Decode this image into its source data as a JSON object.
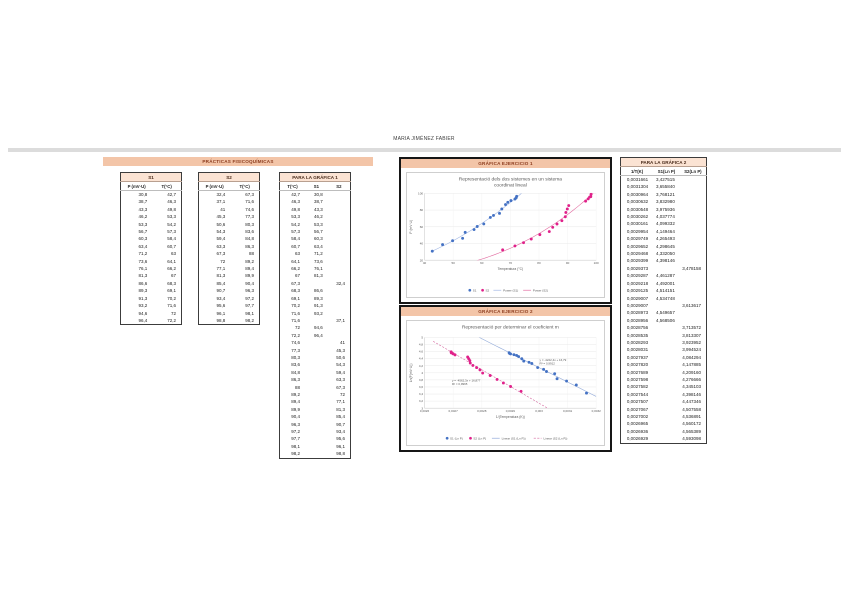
{
  "page": {
    "author_line": "MARIA JIMÉNEZ FABIER"
  },
  "section1": {
    "header": "PRÁCTICAS FISICOQUÍMICAS"
  },
  "charts": {
    "panel1_header": "GRÁFICA EJERCICIO 1",
    "panel2_header": "GRÁFICA EJERCICIO 2"
  },
  "colors": {
    "accent_bar": "#f3c5a8",
    "series1": "#4472c4",
    "series2": "#e0218a"
  },
  "tables": {
    "t1": {
      "title": "S1",
      "cols": [
        "P (mV·U)",
        "T(°C)"
      ],
      "rows": [
        [
          "30,8",
          "42,7"
        ],
        [
          "38,7",
          "46,3"
        ],
        [
          "43,3",
          "49,8"
        ],
        [
          "46,2",
          "53,3"
        ],
        [
          "53,3",
          "54,2"
        ],
        [
          "56,7",
          "57,3"
        ],
        [
          "60,3",
          "58,4"
        ],
        [
          "63,4",
          "60,7"
        ],
        [
          "71,2",
          "63"
        ],
        [
          "73,6",
          "64,1"
        ],
        [
          "76,1",
          "66,2"
        ],
        [
          "81,3",
          "67"
        ],
        [
          "86,6",
          "68,3"
        ],
        [
          "89,3",
          "69,1"
        ],
        [
          "91,3",
          "70,2"
        ],
        [
          "93,2",
          "71,6"
        ],
        [
          "94,6",
          "72"
        ],
        [
          "96,4",
          "72,2"
        ]
      ]
    },
    "t2": {
      "title": "S2",
      "cols": [
        "P (mV·U)",
        "T(°C)"
      ],
      "rows": [
        [
          "32,4",
          "67,3"
        ],
        [
          "37,1",
          "71,6"
        ],
        [
          "41",
          "74,6"
        ],
        [
          "45,3",
          "77,3"
        ],
        [
          "50,6",
          "80,3"
        ],
        [
          "54,3",
          "83,6"
        ],
        [
          "59,4",
          "84,8"
        ],
        [
          "63,3",
          "86,3"
        ],
        [
          "67,3",
          "88"
        ],
        [
          "72",
          "89,2"
        ],
        [
          "77,1",
          "89,4"
        ],
        [
          "81,3",
          "89,9"
        ],
        [
          "85,4",
          "90,4"
        ],
        [
          "90,7",
          "96,3"
        ],
        [
          "93,4",
          "97,2"
        ],
        [
          "95,6",
          "97,7"
        ],
        [
          "96,1",
          "98,1"
        ],
        [
          "98,8",
          "98,2"
        ]
      ]
    },
    "t3": {
      "title": "PARA LA GRÁFICA 1",
      "cols": [
        "T(°C)",
        "S1",
        "S2"
      ],
      "rows": [
        [
          "42,7",
          "30,8",
          ""
        ],
        [
          "46,3",
          "38,7",
          ""
        ],
        [
          "49,8",
          "43,3",
          ""
        ],
        [
          "53,3",
          "46,2",
          ""
        ],
        [
          "54,2",
          "53,3",
          ""
        ],
        [
          "57,3",
          "56,7",
          ""
        ],
        [
          "58,4",
          "60,3",
          ""
        ],
        [
          "60,7",
          "63,4",
          ""
        ],
        [
          "63",
          "71,2",
          ""
        ],
        [
          "64,1",
          "73,6",
          ""
        ],
        [
          "66,2",
          "76,1",
          ""
        ],
        [
          "67",
          "81,3",
          ""
        ],
        [
          "67,3",
          "",
          "32,4"
        ],
        [
          "68,3",
          "86,6",
          ""
        ],
        [
          "69,1",
          "89,3",
          ""
        ],
        [
          "70,2",
          "91,3",
          ""
        ],
        [
          "71,6",
          "93,2",
          ""
        ],
        [
          "71,6",
          "",
          "37,1"
        ],
        [
          "72",
          "94,6",
          ""
        ],
        [
          "72,2",
          "96,4",
          ""
        ],
        [
          "74,6",
          "",
          "41"
        ],
        [
          "77,3",
          "",
          "45,3"
        ],
        [
          "80,3",
          "",
          "50,6"
        ],
        [
          "83,6",
          "",
          "54,3"
        ],
        [
          "84,8",
          "",
          "59,4"
        ],
        [
          "86,3",
          "",
          "63,3"
        ],
        [
          "88",
          "",
          "67,3"
        ],
        [
          "89,2",
          "",
          "72"
        ],
        [
          "89,4",
          "",
          "77,1"
        ],
        [
          "89,9",
          "",
          "81,3"
        ],
        [
          "90,4",
          "",
          "85,4"
        ],
        [
          "96,3",
          "",
          "90,7"
        ],
        [
          "97,2",
          "",
          "93,4"
        ],
        [
          "97,7",
          "",
          "95,6"
        ],
        [
          "98,1",
          "",
          "96,1"
        ],
        [
          "98,2",
          "",
          "98,8"
        ]
      ]
    },
    "t4": {
      "title": "PARA LA GRÁFICA 2",
      "cols": [
        "1/T(K)",
        "S1(Ln P)",
        "S2(Ln P)"
      ],
      "rows": [
        [
          "0,0031661",
          "3,427515",
          ""
        ],
        [
          "0,0031304",
          "3,655840",
          ""
        ],
        [
          "0,0030964",
          "3,768121",
          ""
        ],
        [
          "0,0030632",
          "3,832980",
          ""
        ],
        [
          "0,0030548",
          "3,975936",
          ""
        ],
        [
          "0,0030262",
          "4,037774",
          ""
        ],
        [
          "0,0030161",
          "4,099332",
          ""
        ],
        [
          "0,0029954",
          "4,149464",
          ""
        ],
        [
          "0,0029749",
          "4,265493",
          ""
        ],
        [
          "0,0029652",
          "4,298645",
          ""
        ],
        [
          "0,0029468",
          "4,332050",
          ""
        ],
        [
          "0,0029399",
          "4,398146",
          ""
        ],
        [
          "0,0029373",
          "",
          "3,478158"
        ],
        [
          "0,0029287",
          "4,461287",
          ""
        ],
        [
          "0,0029218",
          "4,492001",
          ""
        ],
        [
          "0,0029125",
          "4,514151",
          ""
        ],
        [
          "0,0029007",
          "4,534748",
          ""
        ],
        [
          "0,0029007",
          "",
          "3,613617"
        ],
        [
          "0,0028973",
          "4,549657",
          ""
        ],
        [
          "0,0028956",
          "4,568506",
          ""
        ],
        [
          "0,0028756",
          "",
          "3,713572"
        ],
        [
          "0,0028535",
          "",
          "3,813307"
        ],
        [
          "0,0028293",
          "",
          "3,923952"
        ],
        [
          "0,0028031",
          "",
          "3,994524"
        ],
        [
          "0,0027937",
          "",
          "4,084294"
        ],
        [
          "0,0027820",
          "",
          "4,147885"
        ],
        [
          "0,0027689",
          "",
          "4,209160"
        ],
        [
          "0,0027598",
          "",
          "4,276666"
        ],
        [
          "0,0027582",
          "",
          "4,345103"
        ],
        [
          "0,0027544",
          "",
          "4,398146"
        ],
        [
          "0,0027507",
          "",
          "4,447346"
        ],
        [
          "0,0027067",
          "",
          "4,507558"
        ],
        [
          "0,0027002",
          "",
          "4,536891"
        ],
        [
          "0,0026965",
          "",
          "4,560172"
        ],
        [
          "0,0026936",
          "",
          "4,565389"
        ],
        [
          "0,0026929",
          "",
          "4,593098"
        ]
      ]
    }
  },
  "chart_data": [
    {
      "type": "scatter",
      "title_lines": [
        "Representació dels dos sistemes en un sistema",
        "coordinat lineal"
      ],
      "xlabel": "Temperatura (°C)",
      "ylabel": "P (mV·U)",
      "xlim": [
        40,
        100
      ],
      "ylim": [
        20,
        100
      ],
      "grid": true,
      "legend_position": "bottom",
      "xticks": [
        40,
        50,
        60,
        70,
        80,
        90,
        100
      ],
      "xtick_labels": [
        "40",
        "50",
        "60",
        "70",
        "80",
        "90",
        "100"
      ],
      "yticks": [
        20,
        40,
        60,
        80,
        100
      ],
      "ytick_labels": [
        "20",
        "40",
        "60",
        "80",
        "100"
      ],
      "series": [
        {
          "name": "S1",
          "color": "#4472c4",
          "points": [
            [
              42.7,
              30.8
            ],
            [
              46.3,
              38.7
            ],
            [
              49.8,
              43.3
            ],
            [
              53.3,
              46.2
            ],
            [
              54.2,
              53.3
            ],
            [
              57.3,
              56.7
            ],
            [
              58.4,
              60.3
            ],
            [
              60.7,
              63.4
            ],
            [
              63,
              71.2
            ],
            [
              64.1,
              73.6
            ],
            [
              66.2,
              76.1
            ],
            [
              67,
              81.3
            ],
            [
              68.3,
              86.6
            ],
            [
              69.1,
              89.3
            ],
            [
              70.2,
              91.3
            ],
            [
              71.6,
              93.2
            ],
            [
              72,
              94.6
            ],
            [
              72.2,
              96.4
            ]
          ]
        },
        {
          "name": "S2",
          "color": "#e0218a",
          "points": [
            [
              67.3,
              32.4
            ],
            [
              71.6,
              37.1
            ],
            [
              74.6,
              41
            ],
            [
              77.3,
              45.3
            ],
            [
              80.3,
              50.6
            ],
            [
              83.6,
              54.3
            ],
            [
              84.8,
              59.4
            ],
            [
              86.3,
              63.3
            ],
            [
              88,
              67.3
            ],
            [
              89.2,
              72
            ],
            [
              89.4,
              77.1
            ],
            [
              89.9,
              81.3
            ],
            [
              90.4,
              85.4
            ],
            [
              96.3,
              90.7
            ],
            [
              97.2,
              93.4
            ],
            [
              97.7,
              95.6
            ],
            [
              98.1,
              96.1
            ],
            [
              98.2,
              98.8
            ]
          ]
        }
      ],
      "trendlines": [
        {
          "name": "Power (S1)",
          "color": "#9fb5e3",
          "fit": "power",
          "series": 0,
          "range": [
            43,
            79
          ],
          "dash": null
        },
        {
          "name": "Power (S2)",
          "color": "#e2699f",
          "fit": "power",
          "series": 1,
          "range": [
            52,
            99
          ],
          "dash": null
        }
      ],
      "annotations": []
    },
    {
      "type": "scatter",
      "title_lines": [
        "Representació per determinar el coeficient m"
      ],
      "xlabel": "1/(Temperatura (K))",
      "ylabel": "Ln(P(mV·U))",
      "xlim": [
        0.0026,
        0.0032
      ],
      "ylim": [
        3,
        5
      ],
      "grid": true,
      "legend_position": "bottom",
      "xticks": [
        0.0026,
        0.0027,
        0.0028,
        0.0029,
        0.003,
        0.0031,
        0.0032
      ],
      "xtick_labels": [
        "0,0026",
        "0,0027",
        "0,0028",
        "0,0029",
        "0,003",
        "0,0031",
        "0,0032"
      ],
      "yticks": [
        3,
        3.2,
        3.4,
        3.6,
        3.8,
        4,
        4.2,
        4.4,
        4.6,
        4.8,
        5
      ],
      "ytick_labels": [
        "3",
        "3,2",
        "3,4",
        "3,6",
        "3,8",
        "4",
        "4,2",
        "4,4",
        "4,6",
        "4,8",
        "5"
      ],
      "series": [
        {
          "name": "S1 (Ln P)",
          "color": "#4472c4",
          "points": [
            [
              0.0031661,
              3.4275
            ],
            [
              0.0031304,
              3.6558
            ],
            [
              0.0030964,
              3.7681
            ],
            [
              0.0030632,
              3.833
            ],
            [
              0.0030548,
              3.9759
            ],
            [
              0.0030262,
              4.0378
            ],
            [
              0.0030161,
              4.0993
            ],
            [
              0.0029954,
              4.1495
            ],
            [
              0.0029749,
              4.2655
            ],
            [
              0.0029652,
              4.2986
            ],
            [
              0.0029468,
              4.3321
            ],
            [
              0.0029399,
              4.3981
            ],
            [
              0.0029287,
              4.4613
            ],
            [
              0.0029218,
              4.492
            ],
            [
              0.0029125,
              4.5142
            ],
            [
              0.0029007,
              4.5347
            ],
            [
              0.0028973,
              4.5497
            ],
            [
              0.0028956,
              4.5685
            ]
          ]
        },
        {
          "name": "S2 (Ln P)",
          "color": "#e0218a",
          "points": [
            [
              0.0029373,
              3.4782
            ],
            [
              0.0029007,
              3.6136
            ],
            [
              0.0028756,
              3.7136
            ],
            [
              0.0028535,
              3.8133
            ],
            [
              0.0028293,
              3.924
            ],
            [
              0.0028031,
              3.9945
            ],
            [
              0.0027937,
              4.0843
            ],
            [
              0.002782,
              4.1479
            ],
            [
              0.0027689,
              4.2092
            ],
            [
              0.0027598,
              4.2767
            ],
            [
              0.0027582,
              4.3451
            ],
            [
              0.0027544,
              4.3981
            ],
            [
              0.0027507,
              4.4473
            ],
            [
              0.0027067,
              4.5076
            ],
            [
              0.0027002,
              4.5369
            ],
            [
              0.0026965,
              4.5602
            ],
            [
              0.0026936,
              4.5654
            ],
            [
              0.0026929,
              4.5931
            ]
          ]
        }
      ],
      "trendlines": [
        {
          "name": "Linear (S1 (Ln P))",
          "color": "#8fa8d8",
          "fit": "linear",
          "series": 0,
          "range": [
            0.00272,
            0.0032
          ],
          "dash": null
        },
        {
          "name": "Linear (S2 (Ln P))",
          "color": "#d4679f",
          "fit": "linear",
          "series": 1,
          "range": [
            0.00263,
            0.00307
          ],
          "dash": "2.2,1.4"
        }
      ],
      "annotations": [
        {
          "lines": [
            "y = -4222,4x + 16,79",
            "R² = 0,9912"
          ],
          "fx": 0.67,
          "fy": 0.33,
          "color": "#595959"
        },
        {
          "lines": [
            "y = -4562,3x + 16,877",
            "R² = 0,9965"
          ],
          "fx": 0.16,
          "fy": 0.62,
          "color": "#595959"
        }
      ]
    }
  ]
}
